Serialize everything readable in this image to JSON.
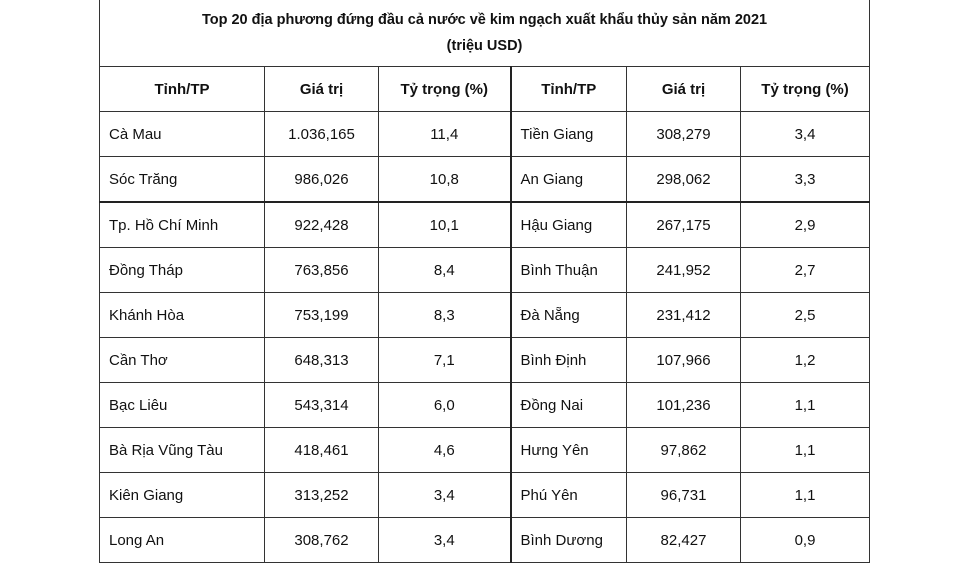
{
  "header": {
    "title": "Top 20 địa phương đứng đầu cả nước về kim ngạch xuất khẩu thủy sản năm 2021",
    "subtitle": "(triệu USD)"
  },
  "table": {
    "columns": [
      "Tỉnh/TP",
      "Giá trị",
      "Tỷ trọng (%)",
      "Tỉnh/TP",
      "Giá trị",
      "Tỷ trọng (%)"
    ],
    "rows": [
      [
        "Cà Mau",
        "1.036,165",
        "11,4",
        "Tiền Giang",
        "308,279",
        "3,4"
      ],
      [
        "Sóc Trăng",
        "986,026",
        "10,8",
        "An Giang",
        "298,062",
        "3,3"
      ],
      [
        "Tp. Hồ Chí Minh",
        "922,428",
        "10,1",
        "Hậu Giang",
        "267,175",
        "2,9"
      ],
      [
        "Đồng Tháp",
        "763,856",
        "8,4",
        "Bình Thuận",
        "241,952",
        "2,7"
      ],
      [
        "Khánh Hòa",
        "753,199",
        "8,3",
        "Đà Nẵng",
        "231,412",
        "2,5"
      ],
      [
        "Cần Thơ",
        "648,313",
        "7,1",
        "Bình Định",
        "107,966",
        "1,2"
      ],
      [
        "Bạc Liêu",
        "543,314",
        "6,0",
        "Đồng Nai",
        "101,236",
        "1,1"
      ],
      [
        "Bà Rịa Vũng Tàu",
        "418,461",
        "4,6",
        "Hưng Yên",
        "97,862",
        "1,1"
      ],
      [
        "Kiên Giang",
        "313,252",
        "3,4",
        "Phú Yên",
        "96,731",
        "1,1"
      ],
      [
        "Long An",
        "308,762",
        "3,4",
        "Bình Dương",
        "82,427",
        "0,9"
      ]
    ]
  }
}
